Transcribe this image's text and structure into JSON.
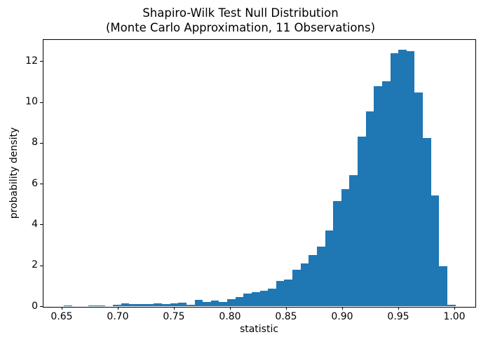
{
  "title": {
    "line1": "Shapiro-Wilk Test Null Distribution",
    "line2": "(Monte Carlo Approximation, 11 Observations)"
  },
  "chart_data": {
    "type": "bar",
    "subtype": "histogram",
    "title": "Shapiro-Wilk Test Null Distribution\n(Monte Carlo Approximation, 11 Observations)",
    "xlabel": "statistic",
    "ylabel": "probability density",
    "bar_color": "#1f77b4",
    "grid": false,
    "legend_position": "none",
    "bin_start": 0.6524,
    "bin_width": 0.00726,
    "densities": [
      0.05,
      0,
      0,
      0.04,
      0.05,
      0,
      0.06,
      0.13,
      0.09,
      0.11,
      0.11,
      0.13,
      0.1,
      0.14,
      0.16,
      0.08,
      0.3,
      0.19,
      0.27,
      0.2,
      0.35,
      0.43,
      0.61,
      0.69,
      0.76,
      0.85,
      1.25,
      1.31,
      1.77,
      2.11,
      2.52,
      2.91,
      3.72,
      5.15,
      5.72,
      6.41,
      8.3,
      9.53,
      10.76,
      11.02,
      12.4,
      12.56,
      12.48,
      10.47,
      8.24,
      5.41,
      1.94,
      0.07
    ],
    "peak": {
      "statistic": 0.95,
      "density": 12.56
    },
    "xlim": [
      0.634,
      1.018
    ],
    "ylim": [
      0,
      13.04
    ],
    "xticks": [
      0.65,
      0.7,
      0.75,
      0.8,
      0.85,
      0.9,
      0.95,
      1.0
    ],
    "xtick_labels": [
      "0.65",
      "0.70",
      "0.75",
      "0.80",
      "0.85",
      "0.90",
      "0.95",
      "1.00"
    ],
    "yticks": [
      0,
      2,
      4,
      6,
      8,
      10,
      12
    ],
    "ytick_labels": [
      "0",
      "2",
      "4",
      "6",
      "8",
      "10",
      "12"
    ]
  }
}
